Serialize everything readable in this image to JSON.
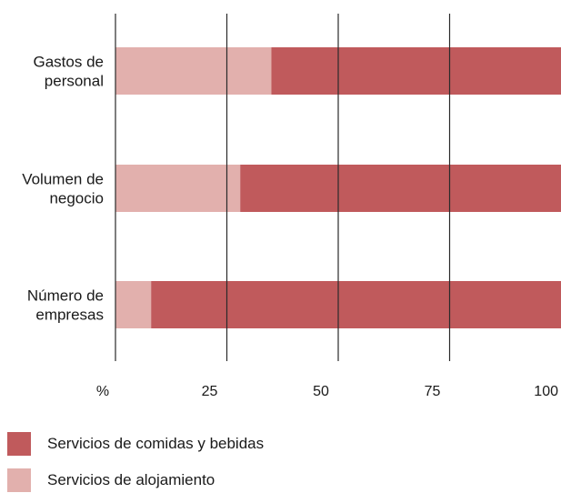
{
  "chart_data": {
    "type": "bar",
    "orientation": "horizontal",
    "stacked": true,
    "percent": true,
    "categories": [
      [
        "Gastos de",
        "personal"
      ],
      [
        "Volumen de",
        "negocio"
      ],
      [
        "Número de",
        "empresas"
      ]
    ],
    "series": [
      {
        "name": "Servicios de alojamiento",
        "values": [
          35,
          28,
          8
        ],
        "color": "#e2b0ad"
      },
      {
        "name": "Servicios de comidas y bebidas",
        "values": [
          65,
          72,
          92
        ],
        "color": "#c05a5c"
      }
    ],
    "xlim": [
      0,
      100
    ],
    "xticks": [
      0,
      25,
      50,
      75,
      100
    ],
    "xtick_labels": [
      "%",
      "25",
      "50",
      "75",
      "100"
    ],
    "grid": true,
    "legend_order": [
      "Servicios de comidas y bebidas",
      "Servicios de alojamiento"
    ],
    "legend_placement": "bottom-left"
  }
}
